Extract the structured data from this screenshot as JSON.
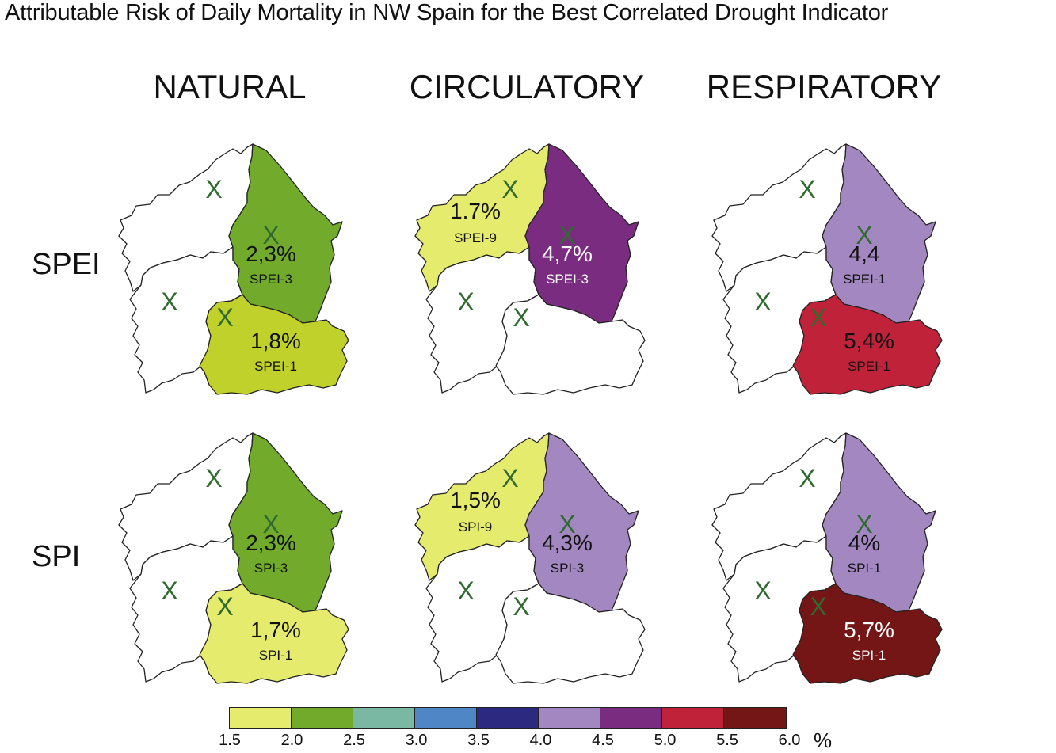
{
  "title": "Attributable Risk of Daily Mortality in NW Spain for the Best Correlated Drought Indicator",
  "columns": [
    "NATURAL",
    "CIRCULATORY",
    "RESPIRATORY"
  ],
  "rows": [
    "SPEI",
    "SPI"
  ],
  "colors": {
    "outline": "#222222",
    "x_marker": "#2f6b2f",
    "c15_20": "#e5eb6c",
    "c20_25": "#72ab2c",
    "c25_30": "#7bb8a4",
    "c30_35": "#4f86c6",
    "c35_40": "#2c2a80",
    "c40_45": "#a387c1",
    "c45_50": "#7a2c80",
    "c50_55": "#c0223a",
    "c55_60": "#751616",
    "lime": "#bfd12a"
  },
  "panels": [
    {
      "id": "spei-natural",
      "lugo": {
        "color": "#72ab2c",
        "value": "2,3%",
        "indicator": "SPEI-3",
        "text_color": "#111111"
      },
      "ourense": {
        "color": "#bfd12a",
        "value": "1,8%",
        "indicator": "SPEI-1",
        "text_color": "#111111"
      },
      "coruna": {
        "color": "#ffffff",
        "value": "",
        "indicator": ""
      },
      "pontevedra": {
        "color": "#ffffff",
        "value": "",
        "indicator": ""
      }
    },
    {
      "id": "spei-circulatory",
      "lugo": {
        "color": "#7a2c80",
        "value": "4,7%",
        "indicator": "SPEI-3",
        "text_color": "#ffffff"
      },
      "ourense": {
        "color": "#ffffff",
        "value": "",
        "indicator": "",
        "text_color": "#111111"
      },
      "coruna": {
        "color": "#e5eb6c",
        "value": "1.7%",
        "indicator": "SPEI-9"
      },
      "pontevedra": {
        "color": "#ffffff",
        "value": "",
        "indicator": ""
      }
    },
    {
      "id": "spei-respiratory",
      "lugo": {
        "color": "#a387c1",
        "value": "4,4",
        "indicator": "SPEI-1",
        "text_color": "#111111"
      },
      "ourense": {
        "color": "#c0223a",
        "value": "5,4%",
        "indicator": "SPEI-1",
        "text_color": "#111111"
      },
      "coruna": {
        "color": "#ffffff",
        "value": "",
        "indicator": ""
      },
      "pontevedra": {
        "color": "#ffffff",
        "value": "",
        "indicator": ""
      }
    },
    {
      "id": "spi-natural",
      "lugo": {
        "color": "#72ab2c",
        "value": "2,3%",
        "indicator": "SPI-3",
        "text_color": "#111111"
      },
      "ourense": {
        "color": "#e5eb6c",
        "value": "1,7%",
        "indicator": "SPI-1",
        "text_color": "#111111"
      },
      "coruna": {
        "color": "#ffffff",
        "value": "",
        "indicator": ""
      },
      "pontevedra": {
        "color": "#ffffff",
        "value": "",
        "indicator": ""
      }
    },
    {
      "id": "spi-circulatory",
      "lugo": {
        "color": "#a387c1",
        "value": "4,3%",
        "indicator": "SPI-3",
        "text_color": "#111111"
      },
      "ourense": {
        "color": "#ffffff",
        "value": "",
        "indicator": "",
        "text_color": "#111111"
      },
      "coruna": {
        "color": "#e5eb6c",
        "value": "1,5%",
        "indicator": "SPI-9"
      },
      "pontevedra": {
        "color": "#ffffff",
        "value": "",
        "indicator": ""
      }
    },
    {
      "id": "spi-respiratory",
      "lugo": {
        "color": "#a387c1",
        "value": "4%",
        "indicator": "SPI-1",
        "text_color": "#111111"
      },
      "ourense": {
        "color": "#751616",
        "value": "5,7%",
        "indicator": "SPI-1",
        "text_color": "#ffffff"
      },
      "coruna": {
        "color": "#ffffff",
        "value": "",
        "indicator": ""
      },
      "pontevedra": {
        "color": "#ffffff",
        "value": "",
        "indicator": ""
      }
    }
  ],
  "x_marker_label": "X",
  "legend": {
    "colors": [
      "#e5eb6c",
      "#72ab2c",
      "#7bb8a4",
      "#4f86c6",
      "#2c2a80",
      "#a387c1",
      "#7a2c80",
      "#c0223a",
      "#751616"
    ],
    "ticks": [
      "1.5",
      "2.0",
      "2.5",
      "3.0",
      "3.5",
      "4.0",
      "4.5",
      "5.0",
      "5.5",
      "6.0"
    ],
    "unit": "%"
  }
}
